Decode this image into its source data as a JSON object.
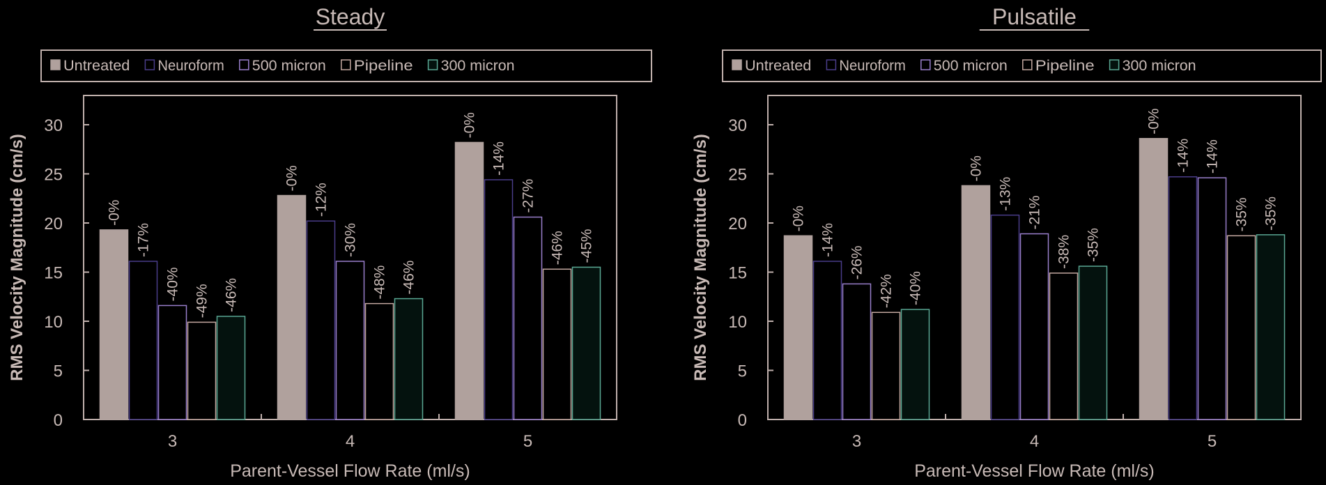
{
  "colors": {
    "background": "#000000",
    "text": "#c8bab6",
    "axis": "#c0b0ac",
    "series_fill": [
      "#b0a19d",
      "#000000",
      "#000000",
      "#000000",
      "#04120e"
    ],
    "series_stroke": [
      "#b0a19d",
      "#4a3d8a",
      "#9a7fcc",
      "#c4a8a0",
      "#5aa894"
    ]
  },
  "chart_data": [
    {
      "type": "bar",
      "title": "Steady",
      "xlabel": "Parent-Vessel Flow Rate (ml/s)",
      "ylabel": "RMS Velocity Magnitude (cm/s)",
      "ylim": [
        0,
        33
      ],
      "yticks": [
        "0",
        "5",
        "10",
        "15",
        "20",
        "25",
        "30"
      ],
      "legend_position": "top",
      "categories": [
        "3",
        "4",
        "5"
      ],
      "series": [
        {
          "name": "Untreated",
          "values": [
            19.3,
            22.8,
            28.2
          ],
          "labels": [
            "-0%",
            "-0%",
            "-0%"
          ]
        },
        {
          "name": "Neuroform",
          "values": [
            16.1,
            20.2,
            24.4
          ],
          "labels": [
            "-17%",
            "-12%",
            "-14%"
          ]
        },
        {
          "name": "500 micron",
          "values": [
            11.6,
            16.1,
            20.6
          ],
          "labels": [
            "-40%",
            "-30%",
            "-27%"
          ]
        },
        {
          "name": "Pipeline",
          "values": [
            9.9,
            11.8,
            15.3
          ],
          "labels": [
            "-49%",
            "-48%",
            "-46%"
          ]
        },
        {
          "name": "300 micron",
          "values": [
            10.5,
            12.3,
            15.5
          ],
          "labels": [
            "-46%",
            "-46%",
            "-45%"
          ]
        }
      ]
    },
    {
      "type": "bar",
      "title": "Pulsatile",
      "xlabel": "Parent-Vessel Flow Rate (ml/s)",
      "ylabel": "RMS Velocity Magnitude (cm/s)",
      "ylim": [
        0,
        33
      ],
      "yticks": [
        "0",
        "5",
        "10",
        "15",
        "20",
        "25",
        "30"
      ],
      "legend_position": "top",
      "categories": [
        "3",
        "4",
        "5"
      ],
      "series": [
        {
          "name": "Untreated",
          "values": [
            18.7,
            23.8,
            28.6
          ],
          "labels": [
            "-0%",
            "-0%",
            "-0%"
          ]
        },
        {
          "name": "Neuroform",
          "values": [
            16.1,
            20.8,
            24.7
          ],
          "labels": [
            "-14%",
            "-13%",
            "-14%"
          ]
        },
        {
          "name": "500 micron",
          "values": [
            13.8,
            18.9,
            24.6
          ],
          "labels": [
            "-26%",
            "-21%",
            "-14%"
          ]
        },
        {
          "name": "Pipeline",
          "values": [
            10.9,
            14.9,
            18.7
          ],
          "labels": [
            "-42%",
            "-38%",
            "-35%"
          ]
        },
        {
          "name": "300 micron",
          "values": [
            11.2,
            15.6,
            18.8
          ],
          "labels": [
            "-40%",
            "-35%",
            "-35%"
          ]
        }
      ]
    }
  ]
}
